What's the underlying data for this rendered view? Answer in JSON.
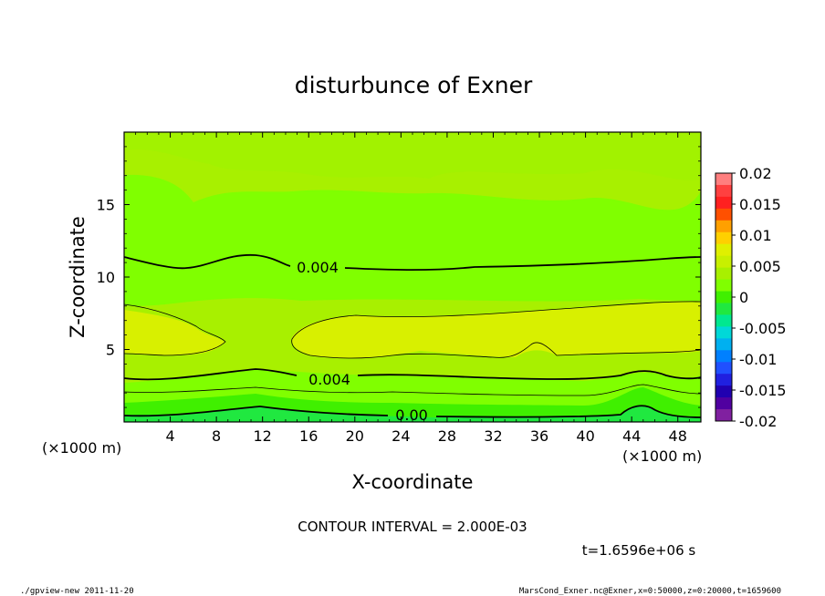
{
  "chart_data": {
    "type": "contour",
    "title": "disturbunce of Exner",
    "xlabel": "X-coordinate",
    "ylabel": "Z-coordinate",
    "x_unit": "(×1000 m)",
    "z_unit": "(×1000 m)",
    "xlim": [
      0,
      50
    ],
    "ylim": [
      0,
      20
    ],
    "x_ticks": [
      "4",
      "8",
      "12",
      "16",
      "20",
      "24",
      "28",
      "32",
      "36",
      "40",
      "44",
      "48"
    ],
    "y_ticks": [
      "5",
      "10",
      "15"
    ],
    "contour_labels": [
      "0.004",
      "0.004",
      "0.00"
    ],
    "colorbar": {
      "ticks": [
        "0.02",
        "0.015",
        "0.01",
        "0.005",
        "0",
        "-0.005",
        "-0.01",
        "-0.015",
        "-0.02"
      ],
      "colors": [
        "#ff7f7f",
        "#ff4040",
        "#ff2020",
        "#ff5000",
        "#ffa000",
        "#ffd000",
        "#e0f000",
        "#c8f000",
        "#a8f000",
        "#80ff00",
        "#40f000",
        "#20e840",
        "#00e890",
        "#00d8d8",
        "#00b0f0",
        "#0080ff",
        "#2050ff",
        "#2020e0",
        "#2000b0",
        "#5000a0",
        "#8020a0"
      ]
    },
    "contour_interval": "CONTOUR INTERVAL = 2.000E-03",
    "time": "t=1.6596e+06 s"
  },
  "footer": {
    "left": "./gpview-new   2011-11-20",
    "right": "MarsCond_Exner.nc@Exner,x=0:50000,z=0:20000,t=1659600"
  }
}
